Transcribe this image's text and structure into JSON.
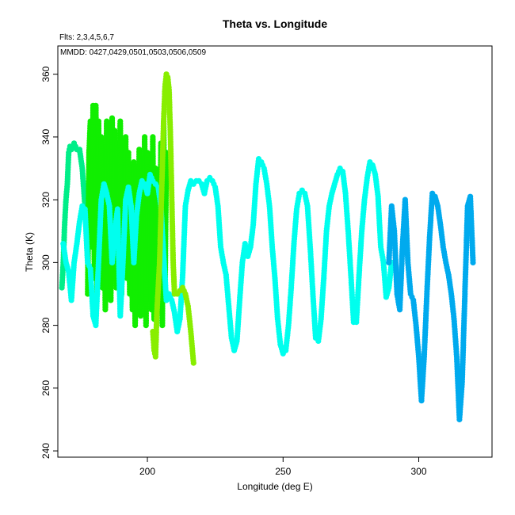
{
  "chart_data": {
    "type": "scatter",
    "title": "Theta vs. Longitude",
    "fits_label": "Flts: 2,3,4,5,6,7",
    "mmdd_label": "MMDD: 0427,0429,0501,0503,0506,0509",
    "xlabel": "Longitude (deg E)",
    "ylabel": "Theta (K)",
    "xlim": [
      167,
      327
    ],
    "ylim": [
      238,
      369
    ],
    "x_ticks": [
      200,
      250,
      300
    ],
    "y_ticks": [
      240,
      260,
      280,
      300,
      320,
      340,
      360
    ],
    "grid": false,
    "series": [
      {
        "color": "#00ee88",
        "x": [
          168.5,
          169,
          169.5,
          170,
          170.5,
          171,
          171.5,
          172,
          172.5,
          173,
          173.5,
          174,
          175,
          176,
          177,
          178,
          178.5,
          179,
          180,
          181,
          182
        ],
        "y": [
          292,
          300,
          312,
          320,
          325,
          335,
          337,
          336,
          337,
          338,
          337,
          336,
          336,
          330,
          318,
          300,
          295,
          296,
          297,
          298,
          300
        ]
      },
      {
        "color": "#11ee00",
        "x": [
          178,
          178.5,
          179,
          179.5,
          180,
          180.5,
          181,
          181.5,
          182,
          182.5,
          183,
          183.5,
          184,
          184.5,
          185,
          185.5,
          186,
          186.5,
          187,
          187.5,
          188,
          188.5,
          189,
          189.5,
          190,
          190.5,
          191,
          191.5,
          192,
          192.5,
          193,
          193.5,
          194,
          194.5,
          195,
          195.5,
          196,
          196.5,
          197,
          197.5,
          198,
          198.5,
          199,
          199.5,
          200,
          200.5,
          201,
          201.5,
          202,
          202.5,
          203,
          203.5,
          204,
          204.5,
          205,
          205.5,
          206,
          206.5,
          207
        ],
        "y": [
          290,
          335,
          345,
          305,
          350,
          295,
          350,
          290,
          345,
          300,
          340,
          292,
          335,
          285,
          345,
          298,
          340,
          288,
          346,
          300,
          342,
          292,
          338,
          296,
          345,
          290,
          330,
          300,
          340,
          295,
          335,
          290,
          325,
          285,
          332,
          280,
          330,
          292,
          336,
          283,
          333,
          288,
          340,
          280,
          335,
          295,
          328,
          285,
          340,
          282,
          330,
          290,
          325,
          285,
          338,
          280,
          345,
          290,
          335
        ]
      },
      {
        "color": "#00ffee",
        "x": [
          169,
          170,
          171,
          172,
          173,
          174,
          175,
          176,
          177,
          178,
          179,
          180,
          181,
          182,
          183,
          184,
          185,
          186,
          187,
          188,
          189,
          190,
          191,
          192,
          193,
          194,
          195,
          196,
          197,
          198,
          199,
          200,
          201,
          202,
          203,
          204,
          205,
          206,
          207,
          208,
          209,
          210,
          211,
          212,
          213,
          214,
          215,
          216,
          217,
          218,
          219,
          220,
          221,
          222,
          223,
          224,
          225,
          226,
          227,
          228,
          229,
          230,
          231,
          232,
          233,
          234,
          235,
          236,
          237,
          238,
          239,
          240,
          241,
          242,
          243,
          244,
          245,
          246,
          247,
          248,
          249,
          250,
          251,
          252,
          253,
          254,
          255,
          256,
          257,
          258,
          259,
          260,
          261,
          262,
          263,
          264,
          265,
          266,
          267,
          268,
          269,
          270,
          271,
          272,
          273,
          274,
          275,
          276,
          277,
          278,
          279,
          280,
          281,
          282,
          283,
          284,
          285,
          286,
          287,
          288,
          289,
          290
        ],
        "y": [
          306,
          300,
          297,
          288,
          300,
          306,
          313,
          318,
          317,
          300,
          298,
          283,
          280,
          300,
          320,
          325,
          322,
          318,
          300,
          310,
          317,
          283,
          300,
          320,
          324,
          318,
          300,
          315,
          322,
          326,
          325,
          322,
          328,
          326,
          325,
          324,
          318,
          302,
          288,
          290,
          288,
          284,
          278,
          282,
          296,
          318,
          323,
          326,
          325,
          326,
          326,
          325,
          322,
          326,
          327,
          326,
          324,
          318,
          305,
          300,
          296,
          286,
          276,
          272,
          275,
          288,
          300,
          306,
          302,
          305,
          312,
          325,
          333,
          332,
          330,
          325,
          318,
          305,
          295,
          282,
          274,
          271,
          272,
          280,
          292,
          306,
          317,
          322,
          323,
          322,
          318,
          305,
          290,
          276,
          275,
          282,
          295,
          310,
          318,
          322,
          325,
          328,
          330,
          329,
          322,
          310,
          296,
          281,
          281,
          296,
          310,
          320,
          327,
          332,
          331,
          328,
          321,
          305,
          300,
          289,
          292,
          300
        ]
      },
      {
        "color": "#00aaee",
        "x": [
          289,
          290,
          291,
          292,
          293,
          294,
          295,
          296,
          297,
          298,
          299,
          300,
          301,
          302,
          303,
          304,
          305,
          306,
          307,
          308,
          309,
          310,
          311,
          312,
          313,
          314,
          315,
          316,
          317,
          318,
          319,
          320
        ],
        "y": [
          300,
          318,
          310,
          290,
          285,
          305,
          320,
          300,
          290,
          288,
          280,
          270,
          256,
          270,
          290,
          308,
          322,
          321,
          318,
          312,
          305,
          300,
          296,
          290,
          282,
          270,
          250,
          262,
          290,
          318,
          321,
          300
        ]
      },
      {
        "color": "#88ee00",
        "x": [
          202,
          202.5,
          203,
          203.5,
          204,
          204.5,
          205,
          205.5,
          206,
          206.5,
          207,
          207.5,
          208,
          208.5,
          209,
          209.5,
          210,
          211,
          212,
          213,
          214,
          215,
          216,
          217
        ],
        "y": [
          278,
          272,
          270,
          284,
          292,
          300,
          315,
          330,
          345,
          356,
          360,
          359,
          355,
          340,
          320,
          300,
          290,
          290,
          291,
          292,
          290,
          286,
          278,
          268
        ]
      }
    ]
  }
}
